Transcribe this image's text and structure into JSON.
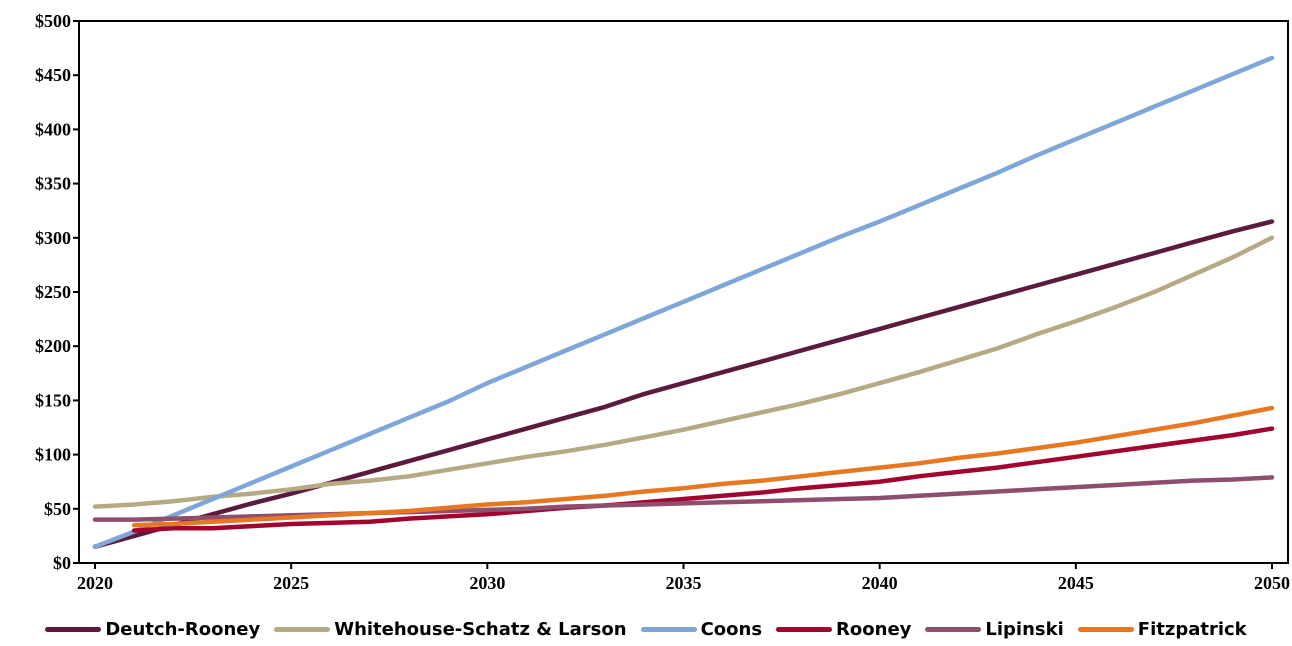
{
  "chart_data": {
    "type": "line",
    "x": [
      2020,
      2021,
      2022,
      2023,
      2024,
      2025,
      2026,
      2027,
      2028,
      2029,
      2030,
      2031,
      2032,
      2033,
      2034,
      2035,
      2036,
      2037,
      2038,
      2039,
      2040,
      2041,
      2042,
      2043,
      2044,
      2045,
      2046,
      2047,
      2048,
      2049,
      2050
    ],
    "x_ticks": [
      "2020",
      "2025",
      "2030",
      "2035",
      "2040",
      "2045",
      "2050"
    ],
    "y_ticks": [
      "$0",
      "$50",
      "$100",
      "$150",
      "$200",
      "$250",
      "$300",
      "$350",
      "$400",
      "$450",
      "$500"
    ],
    "xlim": [
      2020,
      2050
    ],
    "ylim": [
      0,
      500
    ],
    "grid": false,
    "legend_position": "bottom",
    "series": [
      {
        "name": "Deutch-Rooney",
        "color": "#5B1A3E",
        "values": [
          15,
          25,
          35,
          45,
          55,
          64,
          74,
          84,
          94,
          104,
          114,
          124,
          134,
          144,
          156,
          166,
          176,
          186,
          196,
          206,
          216,
          226,
          236,
          246,
          256,
          266,
          276,
          286,
          296,
          306,
          315
        ]
      },
      {
        "name": "Whitehouse-Schatz & Larson",
        "color": "#B5AA84",
        "values": [
          52,
          54,
          57,
          61,
          64,
          68,
          73,
          76,
          80,
          86,
          92,
          98,
          103,
          109,
          116,
          123,
          131,
          139,
          147,
          156,
          166,
          176,
          187,
          198,
          211,
          223,
          236,
          250,
          266,
          282,
          300
        ]
      },
      {
        "name": "Coons",
        "color": "#7EA6D9",
        "values": [
          15,
          29,
          44,
          59,
          74,
          89,
          104,
          119,
          134,
          149,
          166,
          181,
          196,
          211,
          226,
          241,
          256,
          271,
          286,
          301,
          315,
          330,
          345,
          360,
          376,
          391,
          406,
          421,
          436,
          451,
          466
        ]
      },
      {
        "name": "Rooney",
        "color": "#A3042F",
        "values": [
          null,
          30,
          32,
          32,
          34,
          36,
          37,
          38,
          41,
          43,
          45,
          48,
          51,
          53,
          56,
          59,
          62,
          65,
          69,
          72,
          75,
          80,
          84,
          88,
          93,
          98,
          103,
          108,
          113,
          118,
          124
        ]
      },
      {
        "name": "Lipinski",
        "color": "#8E4E6E",
        "values": [
          40,
          40,
          41,
          42,
          43,
          44,
          45,
          46,
          47,
          48,
          49,
          50,
          52,
          53,
          54,
          55,
          56,
          57,
          58,
          59,
          60,
          62,
          64,
          66,
          68,
          70,
          72,
          74,
          76,
          77,
          79
        ]
      },
      {
        "name": "Fitzpatrick",
        "color": "#E87722",
        "values": [
          null,
          35,
          36,
          38,
          40,
          42,
          44,
          46,
          48,
          51,
          54,
          56,
          59,
          62,
          66,
          69,
          73,
          76,
          80,
          84,
          88,
          92,
          97,
          101,
          106,
          111,
          117,
          123,
          129,
          136,
          143
        ]
      }
    ]
  }
}
